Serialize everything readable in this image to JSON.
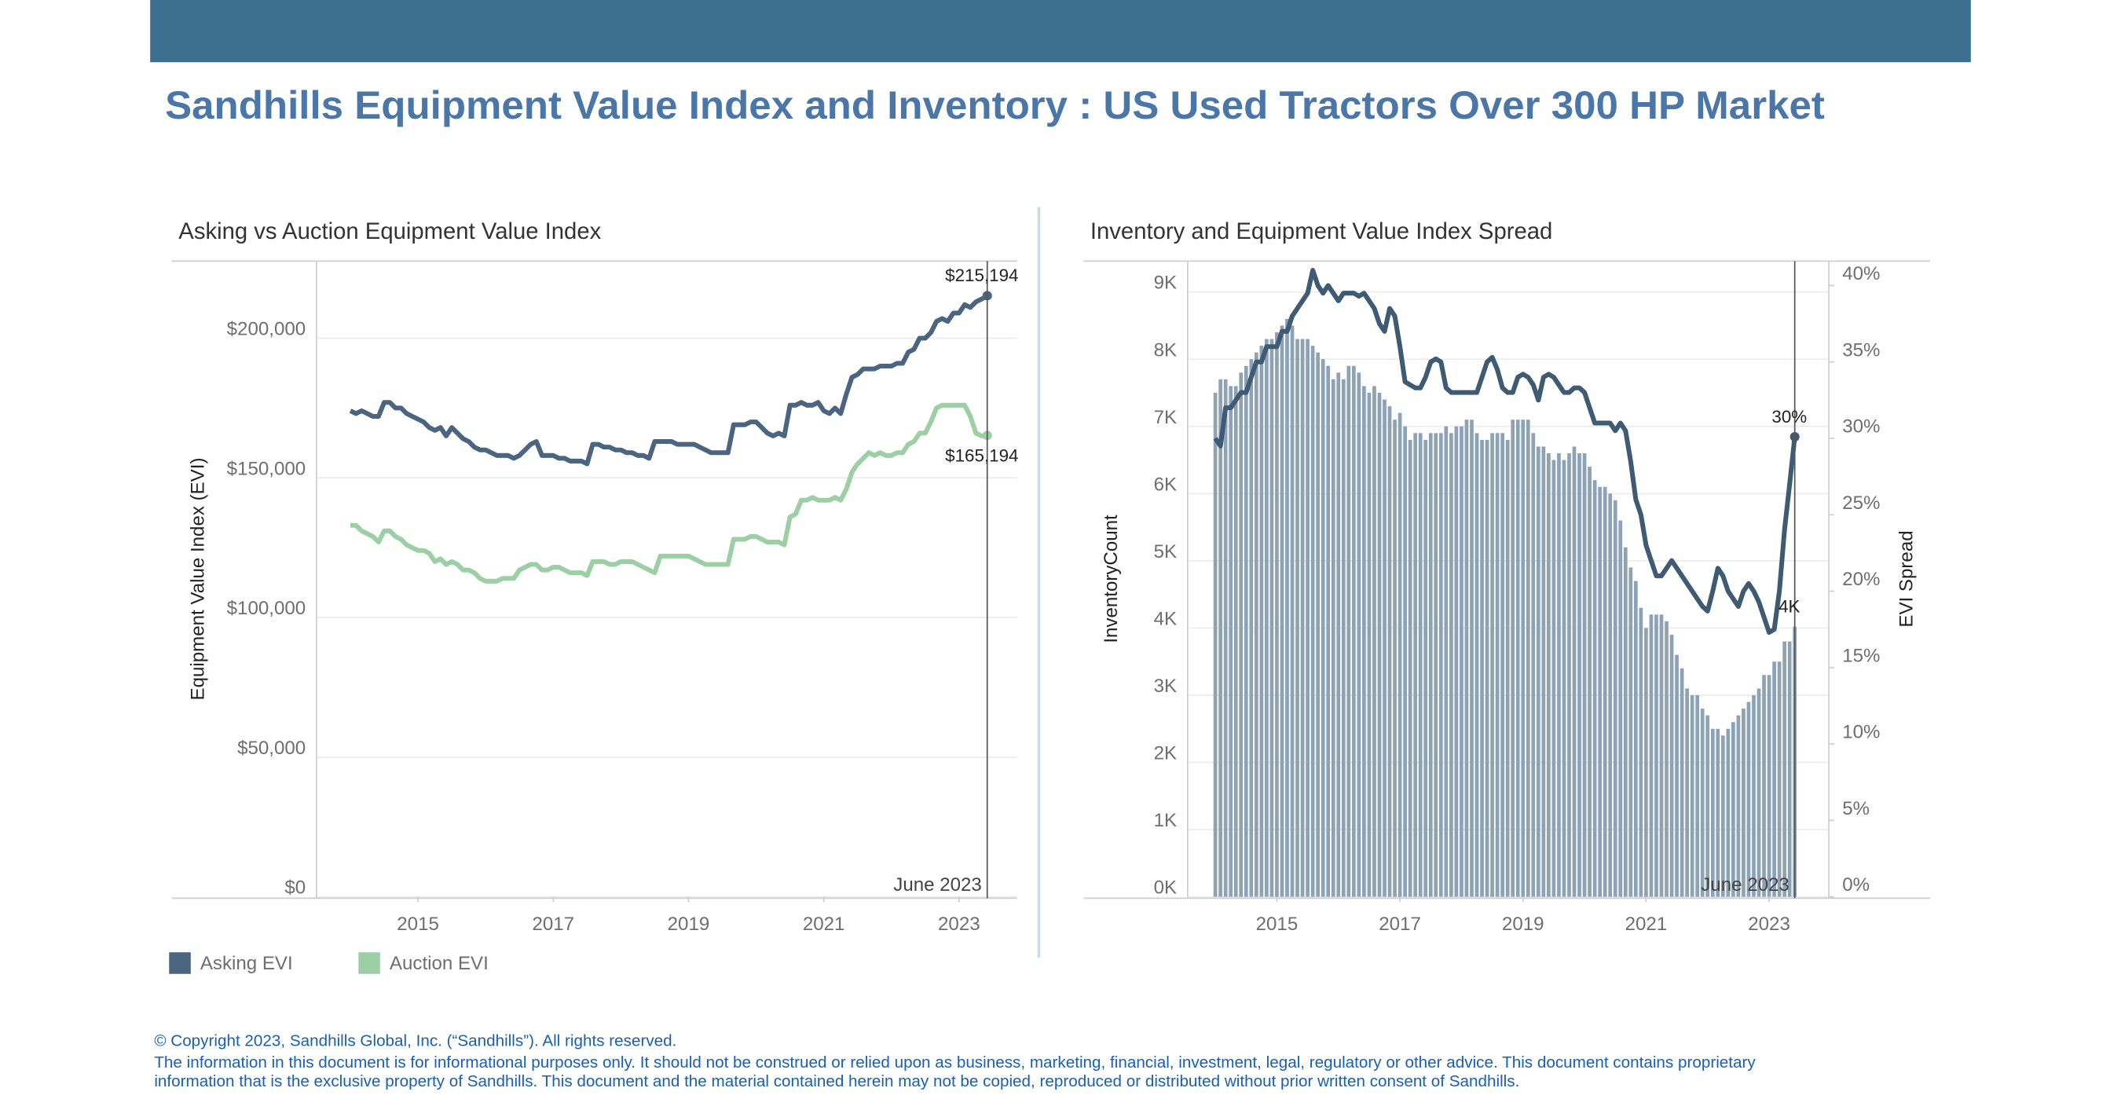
{
  "header": {
    "title": "Sandhills Equipment Value Index and Inventory : US Used Tractors Over 300 HP Market"
  },
  "chart_data": [
    {
      "type": "line",
      "title": "Asking vs Auction Equipment Value Index",
      "y_label": "Equipment Value Index (EVI)",
      "annotation": "June 2023",
      "grid": true,
      "legend": "bottom-left",
      "x": [
        "2014-01",
        "2014-02",
        "2014-03",
        "2014-04",
        "2014-05",
        "2014-06",
        "2014-07",
        "2014-08",
        "2014-09",
        "2014-10",
        "2014-11",
        "2014-12",
        "2015-01",
        "2015-02",
        "2015-03",
        "2015-04",
        "2015-05",
        "2015-06",
        "2015-07",
        "2015-08",
        "2015-09",
        "2015-10",
        "2015-11",
        "2015-12",
        "2016-01",
        "2016-02",
        "2016-03",
        "2016-04",
        "2016-05",
        "2016-06",
        "2016-07",
        "2016-08",
        "2016-09",
        "2016-10",
        "2016-11",
        "2016-12",
        "2017-01",
        "2017-02",
        "2017-03",
        "2017-04",
        "2017-05",
        "2017-06",
        "2017-07",
        "2017-08",
        "2017-09",
        "2017-10",
        "2017-11",
        "2017-12",
        "2018-01",
        "2018-02",
        "2018-03",
        "2018-04",
        "2018-05",
        "2018-06",
        "2018-07",
        "2018-08",
        "2018-09",
        "2018-10",
        "2018-11",
        "2018-12",
        "2019-01",
        "2019-02",
        "2019-03",
        "2019-04",
        "2019-05",
        "2019-06",
        "2019-07",
        "2019-08",
        "2019-09",
        "2019-10",
        "2019-11",
        "2019-12",
        "2020-01",
        "2020-02",
        "2020-03",
        "2020-04",
        "2020-05",
        "2020-06",
        "2020-07",
        "2020-08",
        "2020-09",
        "2020-10",
        "2020-11",
        "2020-12",
        "2021-01",
        "2021-02",
        "2021-03",
        "2021-04",
        "2021-05",
        "2021-06",
        "2021-07",
        "2021-08",
        "2021-09",
        "2021-10",
        "2021-11",
        "2021-12",
        "2022-01",
        "2022-02",
        "2022-03",
        "2022-04",
        "2022-05",
        "2022-06",
        "2022-07",
        "2022-08",
        "2022-09",
        "2022-10",
        "2022-11",
        "2022-12",
        "2023-01",
        "2023-02",
        "2023-03",
        "2023-04",
        "2023-05",
        "2023-06"
      ],
      "xlim": [
        2013.5,
        2023.86
      ],
      "xticks": [
        2015,
        2017,
        2019,
        2021,
        2023
      ],
      "ylim": [
        0,
        227600
      ],
      "yticks": [
        {
          "value": 0,
          "label": "$0"
        },
        {
          "value": 50000,
          "label": "$50,000"
        },
        {
          "value": 100000,
          "label": "$100,000"
        },
        {
          "value": 150000,
          "label": "$150,000"
        },
        {
          "value": 200000,
          "label": "$200,000"
        }
      ],
      "series": [
        {
          "name": "Asking EVI",
          "color": "#4b6580",
          "last_label": "$215,194",
          "values": [
            174000,
            173000,
            174000,
            173000,
            172000,
            172000,
            177000,
            177000,
            175000,
            175000,
            173000,
            172000,
            171000,
            170000,
            168000,
            167000,
            168000,
            165000,
            168000,
            166000,
            164000,
            163000,
            161000,
            160000,
            160000,
            159000,
            158000,
            158000,
            158000,
            157000,
            158000,
            160000,
            162000,
            163000,
            158000,
            158000,
            158000,
            157000,
            157000,
            156000,
            156000,
            156000,
            155000,
            162000,
            162000,
            161000,
            161000,
            160000,
            160000,
            159000,
            159000,
            158000,
            158000,
            157000,
            163000,
            163000,
            163000,
            163000,
            162000,
            162000,
            162000,
            162000,
            161000,
            160000,
            159000,
            159000,
            159000,
            159000,
            169000,
            169000,
            169000,
            170000,
            170000,
            168000,
            166000,
            165000,
            166000,
            165000,
            176000,
            176000,
            177000,
            176000,
            176000,
            177000,
            174000,
            173000,
            175000,
            173000,
            180000,
            186000,
            187000,
            189000,
            189000,
            189000,
            190000,
            190000,
            190000,
            191000,
            191000,
            195000,
            196000,
            200000,
            200000,
            202000,
            206000,
            207000,
            206000,
            209000,
            209000,
            212000,
            211000,
            213000,
            214000,
            215194
          ]
        },
        {
          "name": "Auction EVI",
          "color": "#9dcfa5",
          "last_label": "$165,194",
          "values": [
            133000,
            133000,
            131000,
            130000,
            129000,
            127000,
            131000,
            131000,
            129000,
            128000,
            126000,
            125000,
            124000,
            124000,
            123000,
            120000,
            121000,
            119000,
            120000,
            119000,
            117000,
            117000,
            116000,
            114000,
            113000,
            113000,
            113000,
            114000,
            114000,
            114000,
            117000,
            118000,
            119000,
            119000,
            117000,
            117000,
            118000,
            118000,
            117000,
            116000,
            116000,
            116000,
            115000,
            120000,
            120000,
            120000,
            119000,
            119000,
            120000,
            120000,
            120000,
            119000,
            118000,
            117000,
            116000,
            122000,
            122000,
            122000,
            122000,
            122000,
            122000,
            121000,
            120000,
            119000,
            119000,
            119000,
            119000,
            119000,
            128000,
            128000,
            128000,
            129000,
            129000,
            128000,
            127000,
            127000,
            127000,
            126000,
            136000,
            137000,
            142000,
            142000,
            143000,
            142000,
            142000,
            142000,
            143000,
            142000,
            146000,
            152000,
            155000,
            157000,
            159000,
            158000,
            159000,
            158000,
            158000,
            159000,
            159000,
            162000,
            163000,
            166000,
            166000,
            170000,
            175000,
            176000,
            176000,
            176000,
            176000,
            176000,
            172000,
            166000,
            165000,
            165194
          ]
        }
      ]
    },
    {
      "type": "combo",
      "title": "Inventory and Equipment Value Index Spread",
      "y_label": "InventoryCount",
      "y2_label": "EVI Spread",
      "annotation": "June 2023",
      "grid": true,
      "x": [
        "2014-01",
        "2014-02",
        "2014-03",
        "2014-04",
        "2014-05",
        "2014-06",
        "2014-07",
        "2014-08",
        "2014-09",
        "2014-10",
        "2014-11",
        "2014-12",
        "2015-01",
        "2015-02",
        "2015-03",
        "2015-04",
        "2015-05",
        "2015-06",
        "2015-07",
        "2015-08",
        "2015-09",
        "2015-10",
        "2015-11",
        "2015-12",
        "2016-01",
        "2016-02",
        "2016-03",
        "2016-04",
        "2016-05",
        "2016-06",
        "2016-07",
        "2016-08",
        "2016-09",
        "2016-10",
        "2016-11",
        "2016-12",
        "2017-01",
        "2017-02",
        "2017-03",
        "2017-04",
        "2017-05",
        "2017-06",
        "2017-07",
        "2017-08",
        "2017-09",
        "2017-10",
        "2017-11",
        "2017-12",
        "2018-01",
        "2018-02",
        "2018-03",
        "2018-04",
        "2018-05",
        "2018-06",
        "2018-07",
        "2018-08",
        "2018-09",
        "2018-10",
        "2018-11",
        "2018-12",
        "2019-01",
        "2019-02",
        "2019-03",
        "2019-04",
        "2019-05",
        "2019-06",
        "2019-07",
        "2019-08",
        "2019-09",
        "2019-10",
        "2019-11",
        "2019-12",
        "2020-01",
        "2020-02",
        "2020-03",
        "2020-04",
        "2020-05",
        "2020-06",
        "2020-07",
        "2020-08",
        "2020-09",
        "2020-10",
        "2020-11",
        "2020-12",
        "2021-01",
        "2021-02",
        "2021-03",
        "2021-04",
        "2021-05",
        "2021-06",
        "2021-07",
        "2021-08",
        "2021-09",
        "2021-10",
        "2021-11",
        "2021-12",
        "2022-01",
        "2022-02",
        "2022-03",
        "2022-04",
        "2022-05",
        "2022-06",
        "2022-07",
        "2022-08",
        "2022-09",
        "2022-10",
        "2022-11",
        "2022-12",
        "2023-01",
        "2023-02",
        "2023-03",
        "2023-04",
        "2023-05",
        "2023-06"
      ],
      "xlim": [
        2013.55,
        2023.97
      ],
      "xticks": [
        2015,
        2017,
        2019,
        2021,
        2023
      ],
      "ylim": [
        0,
        9460
      ],
      "yticks": [
        {
          "value": 0,
          "label": "0K"
        },
        {
          "value": 1000,
          "label": "1K"
        },
        {
          "value": 2000,
          "label": "2K"
        },
        {
          "value": 3000,
          "label": "3K"
        },
        {
          "value": 4000,
          "label": "4K"
        },
        {
          "value": 5000,
          "label": "5K"
        },
        {
          "value": 6000,
          "label": "6K"
        },
        {
          "value": 7000,
          "label": "7K"
        },
        {
          "value": 8000,
          "label": "8K"
        },
        {
          "value": 9000,
          "label": "9K"
        }
      ],
      "y2lim": [
        0,
        41.6
      ],
      "y2ticks": [
        {
          "value": 0,
          "label": "0%"
        },
        {
          "value": 5,
          "label": "5%"
        },
        {
          "value": 10,
          "label": "10%"
        },
        {
          "value": 15,
          "label": "15%"
        },
        {
          "value": 20,
          "label": "20%"
        },
        {
          "value": 25,
          "label": "25%"
        },
        {
          "value": 30,
          "label": "30%"
        },
        {
          "value": 35,
          "label": "35%"
        },
        {
          "value": 40,
          "label": "40%"
        }
      ],
      "series": [
        {
          "type": "bar",
          "color": "#8da2b6",
          "last_label": "4K",
          "values": [
            7500,
            7700,
            7700,
            7600,
            7600,
            7800,
            7900,
            8000,
            8100,
            8200,
            8300,
            8300,
            8400,
            8500,
            8600,
            8500,
            8300,
            8300,
            8300,
            8200,
            8100,
            8000,
            7900,
            7700,
            7800,
            7700,
            7900,
            7900,
            7800,
            7600,
            7500,
            7600,
            7500,
            7400,
            7300,
            7100,
            7200,
            7000,
            6800,
            6900,
            6900,
            6800,
            6900,
            6900,
            6900,
            7000,
            6900,
            7000,
            7000,
            7100,
            7100,
            6900,
            6800,
            6800,
            6900,
            6900,
            6900,
            6800,
            7100,
            7100,
            7100,
            7100,
            6900,
            6700,
            6700,
            6600,
            6500,
            6600,
            6500,
            6600,
            6700,
            6600,
            6600,
            6400,
            6200,
            6100,
            6100,
            6000,
            5900,
            5600,
            5200,
            4900,
            4700,
            4300,
            4000,
            4200,
            4200,
            4200,
            4100,
            3900,
            3600,
            3400,
            3100,
            3000,
            3000,
            2800,
            2700,
            2500,
            2500,
            2400,
            2500,
            2600,
            2700,
            2800,
            2900,
            3000,
            3100,
            3300,
            3300,
            3500,
            3500,
            3800,
            3800,
            4020
          ]
        },
        {
          "type": "line",
          "axis": "y2",
          "color": "#3f5a73",
          "last_label": "30%",
          "values": [
            30,
            29.5,
            32,
            32,
            32.5,
            33,
            33,
            34,
            35,
            35,
            36,
            36,
            36,
            37,
            37,
            38,
            38.5,
            39,
            39.5,
            41,
            40,
            39.5,
            40,
            39.5,
            39,
            39.5,
            39.5,
            39.5,
            39.3,
            39.5,
            39,
            38.5,
            37.5,
            37,
            38.5,
            38,
            36,
            33.7,
            33.5,
            33.3,
            33.3,
            34,
            35,
            35.2,
            35,
            33.3,
            33,
            33,
            33,
            33,
            33,
            33,
            34,
            35,
            35.3,
            34.5,
            33.3,
            33,
            33,
            34,
            34.2,
            34,
            33.5,
            32.5,
            34,
            34.2,
            34,
            33.5,
            33,
            33,
            33.3,
            33.3,
            33,
            32,
            31,
            31,
            31,
            31,
            30.5,
            31,
            30.5,
            28.5,
            26,
            25,
            23,
            22,
            21,
            21,
            21.5,
            22,
            21.5,
            21,
            20.5,
            20,
            19.5,
            19,
            18.7,
            20,
            21.5,
            21,
            20,
            19.5,
            19,
            20,
            20.5,
            20,
            19.3,
            18.3,
            17.3,
            17.5,
            20,
            24,
            27,
            30.1
          ]
        }
      ]
    }
  ],
  "footer": {
    "lines": [
      "© Copyright 2023, Sandhills Global, Inc. (“Sandhills”). All rights reserved.",
      "The information in this document is for informational purposes only.  It should not be construed or relied upon as business, marketing, financial, investment, legal, regulatory or other advice. This document contains proprietary",
      "information that is the exclusive property of Sandhills. This document and the material contained herein may not be copied, reproduced or distributed without prior written consent of Sandhills."
    ]
  }
}
